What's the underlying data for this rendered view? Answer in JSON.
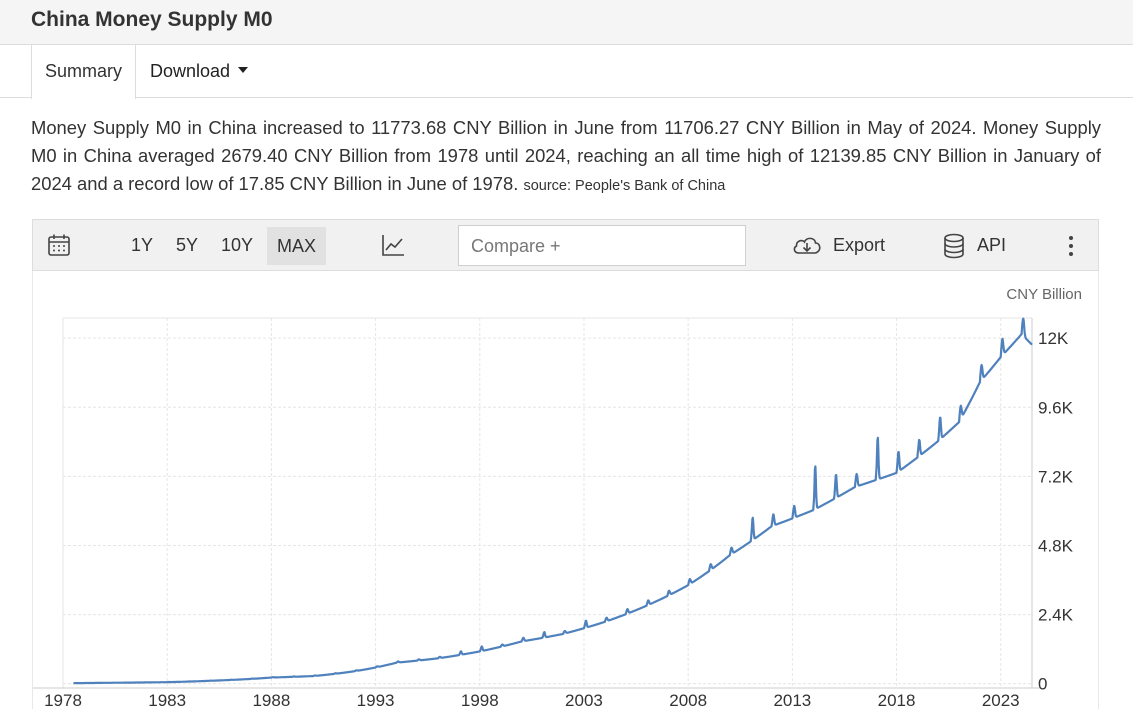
{
  "page": {
    "title": "China Money Supply M0"
  },
  "tabs": {
    "summary": "Summary",
    "download": "Download"
  },
  "summary": {
    "text": "Money Supply M0 in China increased to 11773.68 CNY Billion in June from 11706.27 CNY Billion in May of 2024. Money Supply M0 in China averaged 2679.40 CNY Billion from 1978 until 2024, reaching an all time high of 12139.85 CNY Billion in January of 2024 and a record low of 17.85 CNY Billion in June of 1978.",
    "source": "source: People's Bank of China"
  },
  "toolbar": {
    "range_1y": "1Y",
    "range_5y": "5Y",
    "range_10y": "10Y",
    "range_max": "MAX",
    "compare_placeholder": "Compare +",
    "export": "Export",
    "api": "API",
    "icons": [
      "calendar-icon",
      "line-chart-icon",
      "cloud-download-icon",
      "database-icon",
      "more-vertical-icon"
    ]
  },
  "chart_data": {
    "type": "line",
    "unit_label": "CNY Billion",
    "line_color": "#4f81bd",
    "grid": true,
    "xlim": [
      1978,
      2024.5
    ],
    "ylim": [
      -150,
      12700
    ],
    "x_ticks": [
      1978,
      1983,
      1988,
      1993,
      1998,
      2003,
      2008,
      2013,
      2018,
      2023
    ],
    "y_ticks": [
      0,
      2400,
      4800,
      7200,
      9600,
      12000
    ],
    "y_tick_labels": [
      "0",
      "2.4K",
      "4.8K",
      "7.2K",
      "9.6K",
      "12K"
    ],
    "series": [
      {
        "x": [
          1978.5,
          1980,
          1983,
          1985,
          1988,
          1990,
          1992,
          1994,
          1996,
          1998,
          2000,
          2002,
          2004,
          2006,
          2008,
          2010,
          2012,
          2014,
          2016,
          2018,
          2020,
          2021,
          2022,
          2023,
          2024,
          2024.5
        ],
        "values": [
          17.85,
          30,
          53,
          99,
          213,
          264,
          434,
          729,
          880,
          1120,
          1465,
          1728,
          2147,
          2707,
          3422,
          4463,
          5466,
          6026,
          6830,
          7321,
          8429,
          9086,
          10474,
          11343,
          12139.85,
          11773.68
        ],
        "peaks": [
          {
            "x": 1997.1,
            "y": 1130
          },
          {
            "x": 1998.1,
            "y": 1300
          },
          {
            "x": 2000.1,
            "y": 1600
          },
          {
            "x": 2001.1,
            "y": 1800
          },
          {
            "x": 2003.1,
            "y": 2200
          },
          {
            "x": 2004.1,
            "y": 2300
          },
          {
            "x": 2005.1,
            "y": 2600
          },
          {
            "x": 2006.1,
            "y": 2900
          },
          {
            "x": 2007.1,
            "y": 3100
          },
          {
            "x": 2008.1,
            "y": 3600
          },
          {
            "x": 2009.1,
            "y": 3900
          },
          {
            "x": 2010.1,
            "y": 4200
          },
          {
            "x": 2011.1,
            "y": 5800
          },
          {
            "x": 2012.1,
            "y": 5900
          },
          {
            "x": 2013.1,
            "y": 6200
          },
          {
            "x": 2014.1,
            "y": 7600
          },
          {
            "x": 2015.1,
            "y": 7300
          },
          {
            "x": 2016.1,
            "y": 7300
          },
          {
            "x": 2017.1,
            "y": 8600
          },
          {
            "x": 2018.1,
            "y": 8100
          },
          {
            "x": 2019.1,
            "y": 8500
          },
          {
            "x": 2020.1,
            "y": 9300
          },
          {
            "x": 2021.1,
            "y": 9300
          },
          {
            "x": 2022.1,
            "y": 10700
          },
          {
            "x": 2023.1,
            "y": 11500
          },
          {
            "x": 2024.1,
            "y": 12139.85
          }
        ]
      }
    ]
  }
}
